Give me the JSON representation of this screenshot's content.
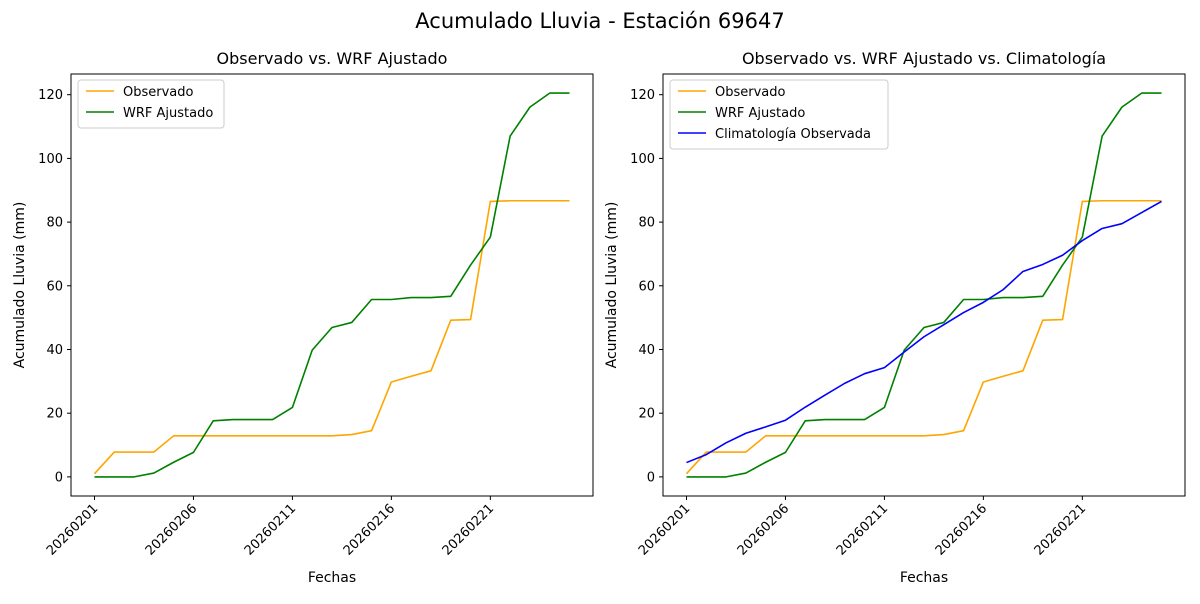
{
  "figure_title": "Acumulado Lluvia - Estación 69647",
  "chart_data": [
    {
      "type": "line",
      "title": "Observado vs. WRF Ajustado",
      "xlabel": "Fechas",
      "ylabel": "Acumulado Lluvia (mm)",
      "x": [
        "20260201",
        "20260202",
        "20260203",
        "20260204",
        "20260205",
        "20260206",
        "20260207",
        "20260208",
        "20260209",
        "20260210",
        "20260211",
        "20260212",
        "20260213",
        "20260214",
        "20260215",
        "20260216",
        "20260217",
        "20260218",
        "20260219",
        "20260220",
        "20260221",
        "20260222",
        "20260223",
        "20260224",
        "20260225"
      ],
      "xticks": [
        "20260201",
        "20260206",
        "20260211",
        "20260216",
        "20260221"
      ],
      "yticks": [
        0,
        20,
        40,
        60,
        80,
        100,
        120
      ],
      "ylim": [
        -6,
        126.5
      ],
      "legend_position": "upper-left",
      "series": [
        {
          "name": "Observado",
          "color": "#ffa500",
          "values": [
            1.0,
            7.8,
            7.8,
            7.8,
            12.9,
            12.9,
            12.9,
            12.9,
            12.9,
            12.9,
            12.9,
            12.9,
            12.9,
            13.3,
            14.5,
            29.8,
            31.6,
            33.3,
            49.2,
            49.4,
            86.5,
            86.7,
            86.7,
            86.7,
            86.7
          ]
        },
        {
          "name": "WRF Ajustado",
          "color": "#008000",
          "values": [
            0.0,
            0.0,
            0.0,
            1.2,
            4.6,
            7.7,
            17.6,
            18.0,
            18.0,
            18.0,
            21.8,
            39.8,
            46.9,
            48.5,
            55.7,
            55.7,
            56.3,
            56.3,
            56.7,
            66.5,
            75.3,
            107.0,
            116.1,
            120.5,
            120.5
          ]
        }
      ]
    },
    {
      "type": "line",
      "title": "Observado vs. WRF Ajustado vs. Climatología",
      "xlabel": "Fechas",
      "ylabel": "Acumulado Lluvia (mm)",
      "x": [
        "20260201",
        "20260202",
        "20260203",
        "20260204",
        "20260205",
        "20260206",
        "20260207",
        "20260208",
        "20260209",
        "20260210",
        "20260211",
        "20260212",
        "20260213",
        "20260214",
        "20260215",
        "20260216",
        "20260217",
        "20260218",
        "20260219",
        "20260220",
        "20260221",
        "20260222",
        "20260223",
        "20260224",
        "20260225"
      ],
      "xticks": [
        "20260201",
        "20260206",
        "20260211",
        "20260216",
        "20260221"
      ],
      "yticks": [
        0,
        20,
        40,
        60,
        80,
        100,
        120
      ],
      "ylim": [
        -6,
        126.5
      ],
      "legend_position": "upper-left",
      "series": [
        {
          "name": "Observado",
          "color": "#ffa500",
          "values": [
            1.0,
            7.8,
            7.8,
            7.8,
            12.9,
            12.9,
            12.9,
            12.9,
            12.9,
            12.9,
            12.9,
            12.9,
            12.9,
            13.3,
            14.5,
            29.8,
            31.6,
            33.3,
            49.2,
            49.4,
            86.5,
            86.7,
            86.7,
            86.7,
            86.7
          ]
        },
        {
          "name": "WRF Ajustado",
          "color": "#008000",
          "values": [
            0.0,
            0.0,
            0.0,
            1.2,
            4.6,
            7.7,
            17.6,
            18.0,
            18.0,
            18.0,
            21.8,
            39.8,
            46.9,
            48.5,
            55.7,
            55.7,
            56.3,
            56.3,
            56.7,
            66.5,
            75.3,
            107.0,
            116.1,
            120.5,
            120.5
          ]
        },
        {
          "name": "Climatología Observada",
          "color": "#0000ff",
          "values": [
            4.5,
            7.0,
            10.7,
            13.7,
            15.7,
            17.8,
            21.9,
            25.7,
            29.4,
            32.4,
            34.3,
            39.2,
            44.0,
            47.8,
            51.6,
            54.8,
            58.8,
            64.5,
            66.7,
            69.6,
            74.2,
            78.0,
            79.5,
            83.0,
            86.5
          ]
        }
      ]
    }
  ]
}
